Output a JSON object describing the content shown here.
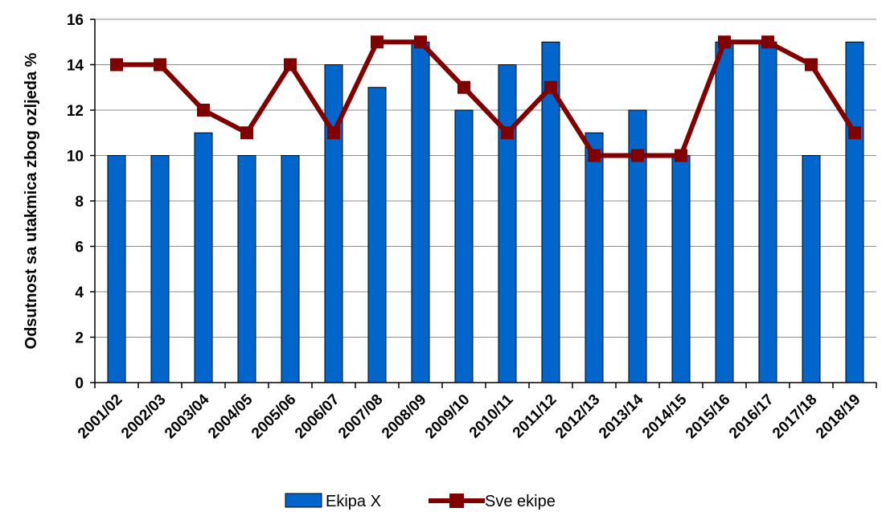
{
  "chart_data": {
    "type": "bar",
    "title": "",
    "xlabel": "",
    "ylabel": "Odsutnost sa utakmica zbog ozljeda %",
    "ylim": [
      0,
      16
    ],
    "yticks": [
      0,
      2,
      4,
      6,
      8,
      10,
      12,
      14,
      16
    ],
    "grid": "horizontal",
    "legend_position": "bottom",
    "categories": [
      "2001/02",
      "2002/03",
      "2003/04",
      "2004/05",
      "2005/06",
      "2006/07",
      "2007/08",
      "2008/09",
      "2009/10",
      "2010/11",
      "2011/12",
      "2012/13",
      "2013/14",
      "2014/15",
      "2015/16",
      "2016/17",
      "2017/18",
      "2018/19"
    ],
    "series": [
      {
        "name": "Ekipa X",
        "type": "bar",
        "color": "#0066CC",
        "values": [
          10,
          10,
          11,
          10,
          10,
          14,
          13,
          15,
          12,
          14,
          15,
          11,
          12,
          10,
          15,
          15,
          10,
          15
        ]
      },
      {
        "name": "Sve ekipe",
        "type": "line",
        "color": "#800000",
        "marker": "square",
        "values": [
          14,
          14,
          12,
          11,
          14,
          11,
          15,
          15,
          13,
          11,
          13,
          10,
          10,
          10,
          15,
          15,
          14,
          11
        ]
      }
    ]
  }
}
